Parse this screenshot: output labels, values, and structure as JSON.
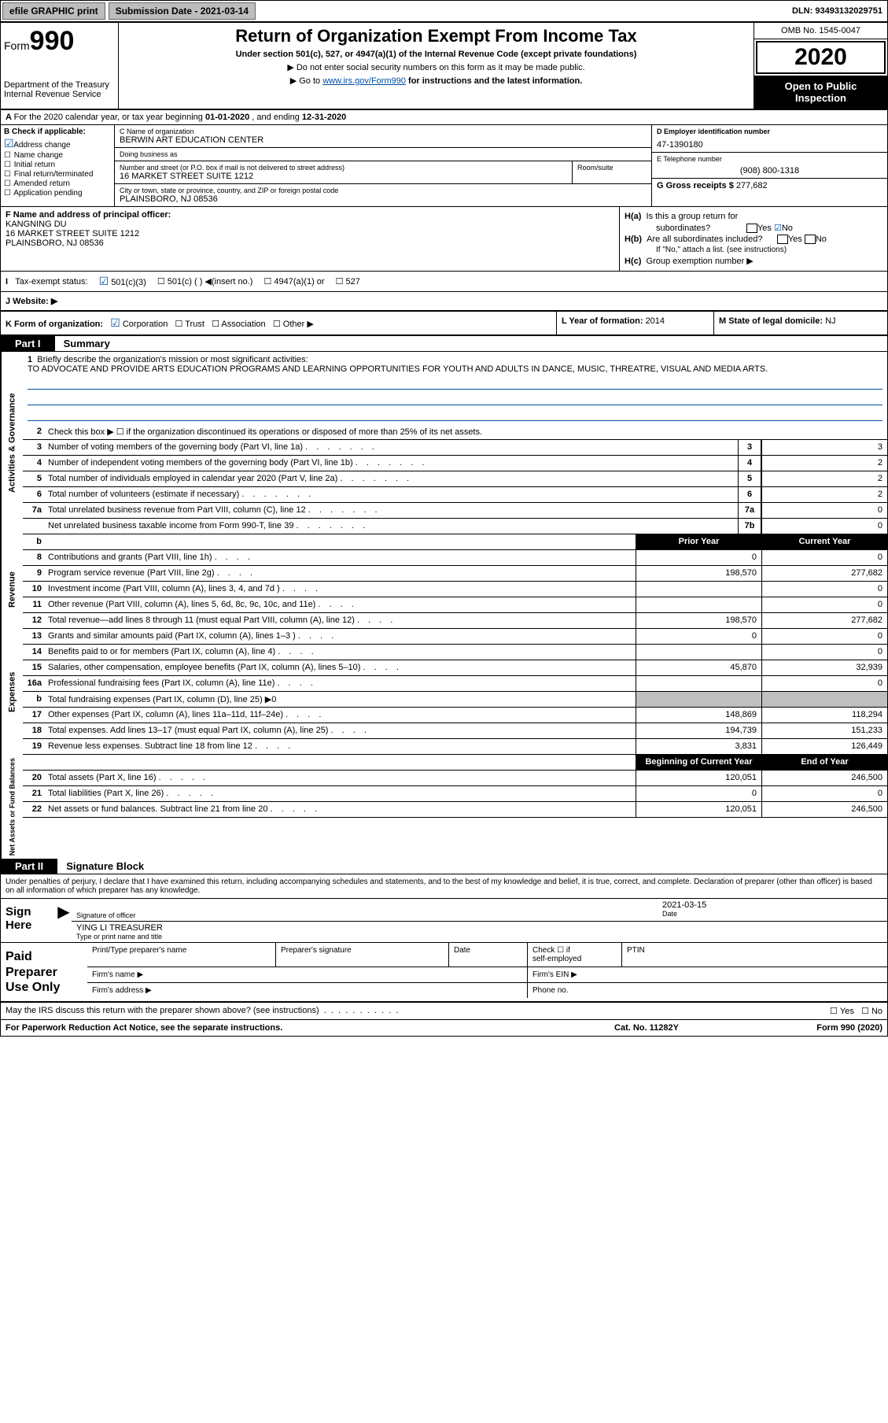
{
  "topbar": {
    "efile": "efile GRAPHIC print",
    "submission_label": "Submission Date - 2021-03-14",
    "dln_label": "DLN: 93493132029751"
  },
  "header": {
    "form_label": "Form",
    "form_number": "990",
    "dept": "Department of the Treasury",
    "irs": "Internal Revenue Service",
    "title": "Return of Organization Exempt From Income Tax",
    "sub": "Under section 501(c), 527, or 4947(a)(1) of the Internal Revenue Code (except private foundations)",
    "line1": "Do not enter social security numbers on this form as it may be made public.",
    "line2_pre": "Go to ",
    "line2_link": "www.irs.gov/Form990",
    "line2_post": " for instructions and the latest information.",
    "omb": "OMB No. 1545-0047",
    "year": "2020",
    "pub1": "Open to Public",
    "pub2": "Inspection"
  },
  "row_a": {
    "pre": "For the 2020 calendar year, or tax year beginning ",
    "begin": "01-01-2020",
    "mid": " , and ending ",
    "end": "12-31-2020"
  },
  "col_b": {
    "label": "B Check if applicable:",
    "opts": [
      "Address change",
      "Name change",
      "Initial return",
      "Final return/terminated",
      "Amended return",
      "Application pending"
    ],
    "checked_idx": 0
  },
  "col_c": {
    "name_lbl": "C Name of organization",
    "name_val": "BERWIN ART EDUCATION CENTER",
    "dba_lbl": "Doing business as",
    "dba_val": "",
    "street_lbl": "Number and street (or P.O. box if mail is not delivered to street address)",
    "street_val": "16 MARKET STREET SUITE 1212",
    "room_lbl": "Room/suite",
    "city_lbl": "City or town, state or province, country, and ZIP or foreign postal code",
    "city_val": "PLAINSBORO, NJ  08536"
  },
  "col_d": {
    "label": "D Employer identification number",
    "val": "47-1390180"
  },
  "col_e": {
    "label": "E Telephone number",
    "val": "(908) 800-1318"
  },
  "col_g": {
    "label": "G Gross receipts $ ",
    "val": "277,682"
  },
  "row_f": {
    "label": "F Name and address of principal officer:",
    "name": "KANGNING DU",
    "addr1": "16 MARKET STREET SUITE 1212",
    "addr2": "PLAINSBORO, NJ  08536"
  },
  "row_h": {
    "ha_lbl": "H(a)",
    "ha_txt": "Is this a group return for",
    "ha_txt2": "subordinates?",
    "hb_lbl": "H(b)",
    "hb_txt": "Are all subordinates included?",
    "hb_sub": "If \"No,\" attach a list. (see instructions)",
    "hc_lbl": "H(c)",
    "hc_txt": "Group exemption number ▶",
    "yes": "Yes",
    "no": "No"
  },
  "row_i": {
    "label": "Tax-exempt status:",
    "o1": "501(c)(3)",
    "o2": "501(c) (  ) ◀(insert no.)",
    "o3": "4947(a)(1) or",
    "o4": "527"
  },
  "row_j": {
    "label": "J   Website: ▶"
  },
  "row_k": {
    "label": "K Form of organization:",
    "o1": "Corporation",
    "o2": "Trust",
    "o3": "Association",
    "o4": "Other ▶"
  },
  "row_l": {
    "label": "L Year of formation: ",
    "val": "2014"
  },
  "row_m": {
    "label": "M State of legal domicile: ",
    "val": "NJ"
  },
  "part1": {
    "part_label": "Part I",
    "title": "Summary",
    "q1": "Briefly describe the organization's mission or most significant activities:",
    "mission": "TO ADVOCATE AND PROVIDE ARTS EDUCATION PROGRAMS AND LEARNING OPPORTUNITIES FOR YOUTH AND ADULTS IN DANCE, MUSIC, THREATRE, VISUAL AND MEDIA ARTS.",
    "q2": "Check this box ▶ ☐  if the organization discontinued its operations or disposed of more than 25% of its net assets.",
    "prior_hdr": "Prior Year",
    "curr_hdr": "Current Year",
    "beg_hdr": "Beginning of Current Year",
    "end_hdr": "End of Year",
    "groups": [
      {
        "vlabel": "Activities & Governance",
        "rows": [
          {
            "n": "3",
            "t": "Number of voting members of the governing body (Part VI, line 1a)",
            "box": "3",
            "p": null,
            "c": "3",
            "two_col": false
          },
          {
            "n": "4",
            "t": "Number of independent voting members of the governing body (Part VI, line 1b)",
            "box": "4",
            "p": null,
            "c": "2",
            "two_col": false
          },
          {
            "n": "5",
            "t": "Total number of individuals employed in calendar year 2020 (Part V, line 2a)",
            "box": "5",
            "p": null,
            "c": "2",
            "two_col": false
          },
          {
            "n": "6",
            "t": "Total number of volunteers (estimate if necessary)",
            "box": "6",
            "p": null,
            "c": "2",
            "two_col": false
          },
          {
            "n": "7a",
            "t": "Total unrelated business revenue from Part VIII, column (C), line 12",
            "box": "7a",
            "p": null,
            "c": "0",
            "two_col": false
          },
          {
            "n": "",
            "t": "Net unrelated business taxable income from Form 990-T, line 39",
            "box": "7b",
            "p": null,
            "c": "0",
            "two_col": false
          }
        ]
      },
      {
        "vlabel": "Revenue",
        "header": true,
        "rows": [
          {
            "n": "8",
            "t": "Contributions and grants (Part VIII, line 1h)",
            "p": "0",
            "c": "0"
          },
          {
            "n": "9",
            "t": "Program service revenue (Part VIII, line 2g)",
            "p": "198,570",
            "c": "277,682"
          },
          {
            "n": "10",
            "t": "Investment income (Part VIII, column (A), lines 3, 4, and 7d )",
            "p": "",
            "c": "0"
          },
          {
            "n": "11",
            "t": "Other revenue (Part VIII, column (A), lines 5, 6d, 8c, 9c, 10c, and 11e)",
            "p": "",
            "c": "0"
          },
          {
            "n": "12",
            "t": "Total revenue—add lines 8 through 11 (must equal Part VIII, column (A), line 12)",
            "p": "198,570",
            "c": "277,682"
          }
        ]
      },
      {
        "vlabel": "Expenses",
        "rows": [
          {
            "n": "13",
            "t": "Grants and similar amounts paid (Part IX, column (A), lines 1–3 )",
            "p": "0",
            "c": "0"
          },
          {
            "n": "14",
            "t": "Benefits paid to or for members (Part IX, column (A), line 4)",
            "p": "",
            "c": "0"
          },
          {
            "n": "15",
            "t": "Salaries, other compensation, employee benefits (Part IX, column (A), lines 5–10)",
            "p": "45,870",
            "c": "32,939"
          },
          {
            "n": "16a",
            "t": "Professional fundraising fees (Part IX, column (A), line 11e)",
            "p": "",
            "c": "0"
          },
          {
            "n": "b",
            "t": "Total fundraising expenses (Part IX, column (D), line 25) ▶0",
            "gray": true
          },
          {
            "n": "17",
            "t": "Other expenses (Part IX, column (A), lines 11a–11d, 11f–24e)",
            "p": "148,869",
            "c": "118,294"
          },
          {
            "n": "18",
            "t": "Total expenses. Add lines 13–17 (must equal Part IX, column (A), line 25)",
            "p": "194,739",
            "c": "151,233"
          },
          {
            "n": "19",
            "t": "Revenue less expenses. Subtract line 18 from line 12",
            "p": "3,831",
            "c": "126,449"
          }
        ]
      },
      {
        "vlabel": "Net Assets or Fund Balances",
        "header2": true,
        "rows": [
          {
            "n": "20",
            "t": "Total assets (Part X, line 16)",
            "p": "120,051",
            "c": "246,500"
          },
          {
            "n": "21",
            "t": "Total liabilities (Part X, line 26)",
            "p": "0",
            "c": "0"
          },
          {
            "n": "22",
            "t": "Net assets or fund balances. Subtract line 21 from line 20",
            "p": "120,051",
            "c": "246,500"
          }
        ]
      }
    ]
  },
  "part2": {
    "part_label": "Part II",
    "title": "Signature Block",
    "intro": "Under penalties of perjury, I declare that I have examined this return, including accompanying schedules and statements, and to the best of my knowledge and belief, it is true, correct, and complete. Declaration of preparer (other than officer) is based on all information of which preparer has any knowledge.",
    "sign_here": "Sign Here",
    "sig_officer_lbl": "Signature of officer",
    "date_lbl": "Date",
    "date_val": "2021-03-15",
    "name_title": "YING LI TREASURER",
    "name_title_lbl": "Type or print name and title",
    "paid": "Paid Preparer Use Only",
    "h1": "Print/Type preparer's name",
    "h2": "Preparer's signature",
    "h3": "Date",
    "h4_pre": "Check ☐ if",
    "h4_post": "self-employed",
    "h5": "PTIN",
    "firm_name": "Firm's name   ▶",
    "firm_ein": "Firm's EIN ▶",
    "firm_addr": "Firm's address ▶",
    "phone": "Phone no."
  },
  "footer": {
    "discuss": "May the IRS discuss this return with the preparer shown above? (see instructions)",
    "yes": "Yes",
    "no": "No",
    "paperwork": "For Paperwork Reduction Act Notice, see the separate instructions.",
    "cat": "Cat. No. 11282Y",
    "form": "Form 990 (2020)"
  }
}
